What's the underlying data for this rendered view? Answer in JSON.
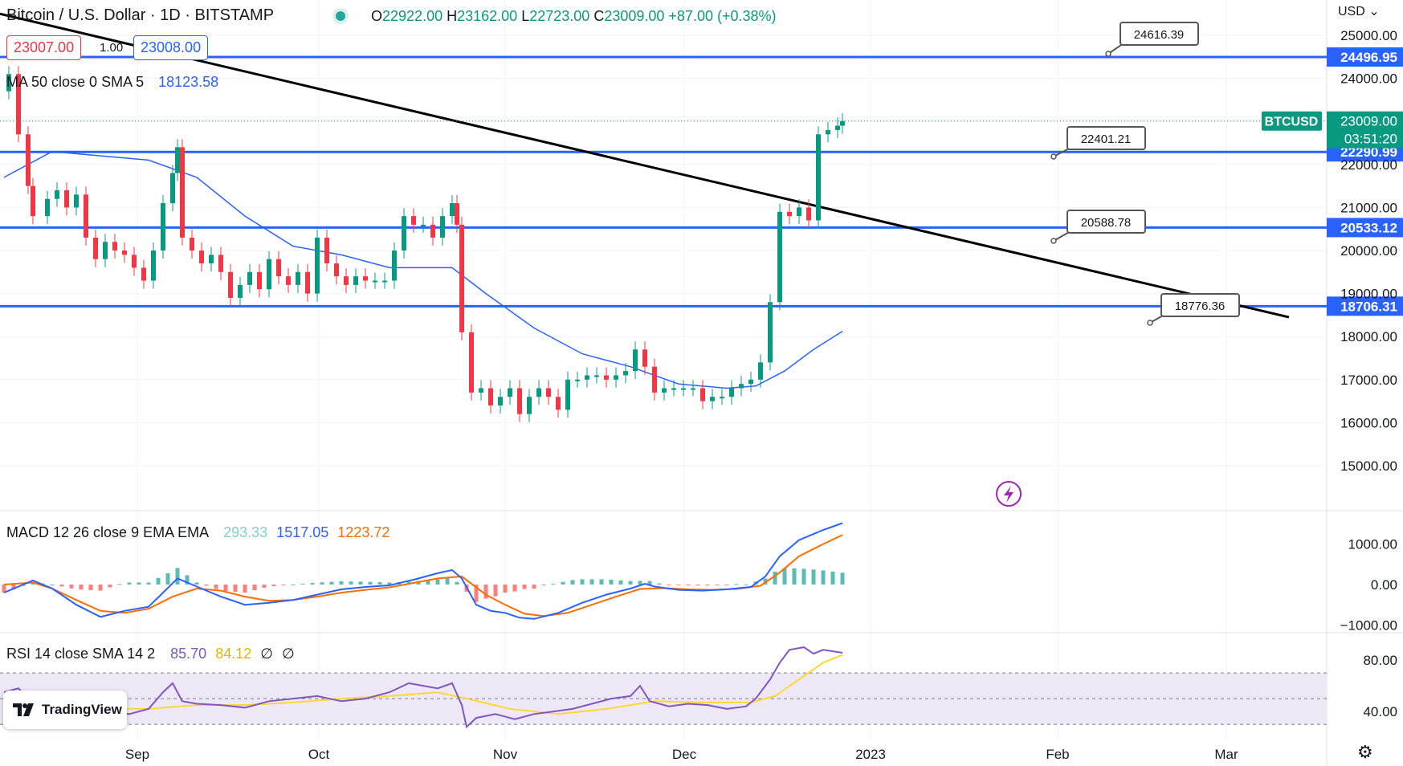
{
  "header": {
    "title": "Bitcoin / U.S. Dollar · 1D · BITSTAMP",
    "open_label": "O",
    "open": "22922.00",
    "high_label": "H",
    "high": "23162.00",
    "low_label": "L",
    "low": "22723.00",
    "close_label": "C",
    "close": "23009.00",
    "change": "+87.00 (+0.38%)"
  },
  "trade": {
    "sell": "23007.00",
    "spread": "1.00",
    "buy": "23008.00"
  },
  "ma_legend": {
    "label": "MA 50 close 0 SMA 5",
    "value": "18123.58"
  },
  "macd_legend": {
    "label": "MACD 12 26 close 9 EMA EMA",
    "histogram": "293.33",
    "macd": "1517.05",
    "signal": "1223.72"
  },
  "rsi_legend": {
    "label": "RSI 14 close SMA 14 2",
    "rsi": "85.70",
    "ma": "84.12",
    "empty1": "∅",
    "empty2": "∅"
  },
  "branding": {
    "name": "TradingView"
  },
  "currency": "USD",
  "colors": {
    "bull": "#089981",
    "bear": "#f23645",
    "ma": "#2962ff",
    "level": "#2962ff",
    "trendline": "#000000",
    "macd": "#2962ff",
    "signal": "#ff6d00",
    "rsi": "#7e57c2",
    "rsi_ma": "#fdd835",
    "rsi_band": "#ede7f6"
  },
  "chart_data": [
    {
      "type": "candlestick",
      "symbol": "BTCUSD",
      "price_ticks": [
        "25000.00",
        "24000.00",
        "23000.00",
        "22000.00",
        "21000.00",
        "20000.00",
        "19000.00",
        "18000.00",
        "17000.00",
        "16000.00",
        "15000.00"
      ],
      "x_ticks": [
        "Sep",
        "Oct",
        "Nov",
        "Dec",
        "2023",
        "Feb",
        "Mar"
      ],
      "last_price": {
        "label": "BTCUSD",
        "value": "23009.00",
        "countdown": "03:51:20"
      },
      "levels": [
        {
          "value": "24496.95"
        },
        {
          "value": "22290.99"
        },
        {
          "value": "20533.12"
        },
        {
          "value": "18706.31"
        }
      ],
      "callouts": [
        "24616.39",
        "22401.21",
        "20588.78",
        "18776.36"
      ],
      "trendline": {
        "from": [
          0,
          25500
        ],
        "to": [
          220,
          18450
        ]
      },
      "ma50_last": 18123.58,
      "candles_path": [
        [
          0,
          23700
        ],
        [
          1,
          24100
        ],
        [
          3,
          22700
        ],
        [
          5,
          21500
        ],
        [
          6,
          20800
        ],
        [
          9,
          21200
        ],
        [
          11,
          21400
        ],
        [
          13,
          21000
        ],
        [
          15,
          21300
        ],
        [
          17,
          20300
        ],
        [
          19,
          19800
        ],
        [
          21,
          20200
        ],
        [
          23,
          20000
        ],
        [
          25,
          19900
        ],
        [
          27,
          19600
        ],
        [
          29,
          19300
        ],
        [
          31,
          20000
        ],
        [
          33,
          21100
        ],
        [
          35,
          21800
        ],
        [
          36,
          22400
        ],
        [
          37,
          20300
        ],
        [
          39,
          20000
        ],
        [
          41,
          19700
        ],
        [
          43,
          19900
        ],
        [
          45,
          19500
        ],
        [
          47,
          18900
        ],
        [
          49,
          19200
        ],
        [
          51,
          19500
        ],
        [
          53,
          19100
        ],
        [
          55,
          19800
        ],
        [
          57,
          19400
        ],
        [
          59,
          19200
        ],
        [
          61,
          19500
        ],
        [
          63,
          19000
        ],
        [
          65,
          20300
        ],
        [
          67,
          19700
        ],
        [
          69,
          19400
        ],
        [
          71,
          19200
        ],
        [
          73,
          19400
        ],
        [
          75,
          19300
        ],
        [
          77,
          19300
        ],
        [
          79,
          19300
        ],
        [
          81,
          20000
        ],
        [
          83,
          20800
        ],
        [
          85,
          20600
        ],
        [
          87,
          20600
        ],
        [
          89,
          20300
        ],
        [
          91,
          20800
        ],
        [
          93,
          21100
        ],
        [
          94,
          20600
        ],
        [
          95,
          18100
        ],
        [
          97,
          16700
        ],
        [
          99,
          16800
        ],
        [
          101,
          16400
        ],
        [
          103,
          16600
        ],
        [
          105,
          16800
        ],
        [
          107,
          16200
        ],
        [
          109,
          16600
        ],
        [
          111,
          16800
        ],
        [
          113,
          16600
        ],
        [
          115,
          16300
        ],
        [
          117,
          17000
        ],
        [
          119,
          17000
        ],
        [
          121,
          17100
        ],
        [
          123,
          17100
        ],
        [
          125,
          17000
        ],
        [
          127,
          17100
        ],
        [
          129,
          17200
        ],
        [
          131,
          17700
        ],
        [
          133,
          17300
        ],
        [
          135,
          16700
        ],
        [
          137,
          16800
        ],
        [
          139,
          16800
        ],
        [
          141,
          16800
        ],
        [
          143,
          16800
        ],
        [
          145,
          16500
        ],
        [
          147,
          16600
        ],
        [
          149,
          16600
        ],
        [
          151,
          16800
        ],
        [
          153,
          16900
        ],
        [
          155,
          17000
        ],
        [
          157,
          17400
        ],
        [
          159,
          18800
        ],
        [
          161,
          20900
        ],
        [
          163,
          20800
        ],
        [
          165,
          21000
        ],
        [
          167,
          20700
        ],
        [
          169,
          22700
        ],
        [
          171,
          22800
        ],
        [
          173,
          22900
        ],
        [
          174,
          23009
        ]
      ],
      "ma50_path": [
        [
          0,
          21700
        ],
        [
          10,
          22300
        ],
        [
          20,
          22200
        ],
        [
          30,
          22100
        ],
        [
          40,
          21700
        ],
        [
          50,
          20800
        ],
        [
          60,
          20100
        ],
        [
          70,
          19900
        ],
        [
          80,
          19600
        ],
        [
          85,
          19600
        ],
        [
          93,
          19600
        ],
        [
          100,
          19000
        ],
        [
          110,
          18200
        ],
        [
          120,
          17600
        ],
        [
          130,
          17300
        ],
        [
          140,
          16900
        ],
        [
          150,
          16800
        ],
        [
          156,
          16850
        ],
        [
          162,
          17200
        ],
        [
          168,
          17700
        ],
        [
          174,
          18123
        ]
      ]
    },
    {
      "type": "macd",
      "y_ticks": [
        "1000.00",
        "0.00",
        "−1000.00"
      ],
      "macd_path": [
        [
          0,
          -200
        ],
        [
          6,
          100
        ],
        [
          10,
          -100
        ],
        [
          15,
          -500
        ],
        [
          20,
          -800
        ],
        [
          25,
          -650
        ],
        [
          30,
          -550
        ],
        [
          33,
          -200
        ],
        [
          36,
          150
        ],
        [
          40,
          -50
        ],
        [
          45,
          -300
        ],
        [
          50,
          -500
        ],
        [
          55,
          -450
        ],
        [
          60,
          -380
        ],
        [
          65,
          -250
        ],
        [
          70,
          -120
        ],
        [
          75,
          -60
        ],
        [
          80,
          -20
        ],
        [
          85,
          120
        ],
        [
          90,
          280
        ],
        [
          93,
          360
        ],
        [
          95,
          150
        ],
        [
          98,
          -500
        ],
        [
          101,
          -650
        ],
        [
          104,
          -700
        ],
        [
          107,
          -820
        ],
        [
          110,
          -850
        ],
        [
          115,
          -700
        ],
        [
          120,
          -450
        ],
        [
          125,
          -250
        ],
        [
          130,
          -100
        ],
        [
          133,
          20
        ],
        [
          135,
          -50
        ],
        [
          140,
          -130
        ],
        [
          145,
          -150
        ],
        [
          150,
          -120
        ],
        [
          155,
          -60
        ],
        [
          158,
          200
        ],
        [
          161,
          700
        ],
        [
          165,
          1100
        ],
        [
          170,
          1350
        ],
        [
          174,
          1517
        ]
      ],
      "signal_path": [
        [
          0,
          0
        ],
        [
          6,
          50
        ],
        [
          10,
          -100
        ],
        [
          15,
          -380
        ],
        [
          20,
          -650
        ],
        [
          25,
          -700
        ],
        [
          30,
          -600
        ],
        [
          35,
          -300
        ],
        [
          40,
          -100
        ],
        [
          45,
          -150
        ],
        [
          50,
          -300
        ],
        [
          55,
          -400
        ],
        [
          60,
          -380
        ],
        [
          65,
          -300
        ],
        [
          70,
          -200
        ],
        [
          75,
          -130
        ],
        [
          80,
          -70
        ],
        [
          85,
          40
        ],
        [
          90,
          150
        ],
        [
          95,
          200
        ],
        [
          100,
          -250
        ],
        [
          104,
          -500
        ],
        [
          108,
          -720
        ],
        [
          112,
          -780
        ],
        [
          117,
          -700
        ],
        [
          122,
          -500
        ],
        [
          127,
          -300
        ],
        [
          132,
          -110
        ],
        [
          137,
          -90
        ],
        [
          142,
          -120
        ],
        [
          147,
          -130
        ],
        [
          152,
          -110
        ],
        [
          157,
          -30
        ],
        [
          161,
          300
        ],
        [
          165,
          700
        ],
        [
          170,
          1000
        ],
        [
          174,
          1224
        ]
      ],
      "histogram_last": 293.33
    },
    {
      "type": "rsi",
      "y_ticks": [
        "80.00",
        "40.00"
      ],
      "band": [
        30,
        70
      ],
      "rsi_path": [
        [
          0,
          55
        ],
        [
          3,
          58
        ],
        [
          5,
          50
        ],
        [
          8,
          38
        ],
        [
          12,
          35
        ],
        [
          15,
          42
        ],
        [
          18,
          44
        ],
        [
          22,
          40
        ],
        [
          26,
          38
        ],
        [
          30,
          42
        ],
        [
          33,
          55
        ],
        [
          35,
          62
        ],
        [
          37,
          48
        ],
        [
          40,
          46
        ],
        [
          45,
          45
        ],
        [
          50,
          43
        ],
        [
          55,
          48
        ],
        [
          60,
          50
        ],
        [
          65,
          52
        ],
        [
          70,
          48
        ],
        [
          75,
          50
        ],
        [
          80,
          55
        ],
        [
          84,
          62
        ],
        [
          87,
          60
        ],
        [
          90,
          58
        ],
        [
          93,
          62
        ],
        [
          95,
          45
        ],
        [
          96,
          28
        ],
        [
          98,
          35
        ],
        [
          102,
          38
        ],
        [
          106,
          34
        ],
        [
          110,
          38
        ],
        [
          114,
          40
        ],
        [
          118,
          42
        ],
        [
          122,
          46
        ],
        [
          126,
          50
        ],
        [
          130,
          52
        ],
        [
          132,
          60
        ],
        [
          134,
          48
        ],
        [
          138,
          44
        ],
        [
          142,
          46
        ],
        [
          146,
          45
        ],
        [
          150,
          42
        ],
        [
          154,
          44
        ],
        [
          156,
          50
        ],
        [
          159,
          65
        ],
        [
          161,
          78
        ],
        [
          163,
          88
        ],
        [
          166,
          90
        ],
        [
          168,
          85
        ],
        [
          170,
          88
        ],
        [
          174,
          85.7
        ]
      ],
      "rsi_ma_path": [
        [
          0,
          48
        ],
        [
          10,
          48
        ],
        [
          20,
          42
        ],
        [
          30,
          42
        ],
        [
          40,
          45
        ],
        [
          50,
          45
        ],
        [
          60,
          47
        ],
        [
          70,
          50
        ],
        [
          80,
          52
        ],
        [
          90,
          55
        ],
        [
          96,
          50
        ],
        [
          105,
          42
        ],
        [
          115,
          38
        ],
        [
          125,
          42
        ],
        [
          135,
          48
        ],
        [
          145,
          47
        ],
        [
          155,
          47
        ],
        [
          160,
          52
        ],
        [
          165,
          65
        ],
        [
          170,
          78
        ],
        [
          174,
          84.1
        ]
      ]
    }
  ]
}
